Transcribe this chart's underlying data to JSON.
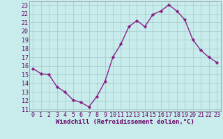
{
  "x": [
    0,
    1,
    2,
    3,
    4,
    5,
    6,
    7,
    8,
    9,
    10,
    11,
    12,
    13,
    14,
    15,
    16,
    17,
    18,
    19,
    20,
    21,
    22,
    23
  ],
  "y": [
    15.7,
    15.1,
    15.0,
    13.6,
    13.0,
    12.1,
    11.8,
    11.3,
    12.5,
    14.2,
    17.0,
    18.5,
    20.5,
    21.2,
    20.5,
    21.9,
    22.3,
    23.0,
    22.3,
    21.3,
    19.0,
    17.8,
    17.0,
    16.4
  ],
  "line_color": "#882288",
  "marker": "D",
  "marker_size": 2.2,
  "bg_color": "#c8ecec",
  "grid_color": "#aacccc",
  "xlabel": "Windchill (Refroidissement éolien,°C)",
  "ylabel_ticks": [
    11,
    12,
    13,
    14,
    15,
    16,
    17,
    18,
    19,
    20,
    21,
    22,
    23
  ],
  "xlim": [
    -0.5,
    23.5
  ],
  "ylim": [
    10.8,
    23.4
  ],
  "xlabel_fontsize": 6.5,
  "tick_fontsize": 6.0,
  "line_width": 1.0
}
